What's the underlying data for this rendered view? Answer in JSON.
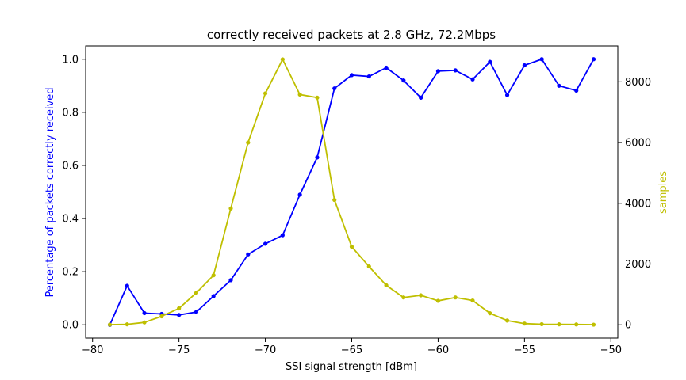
{
  "chart_data": {
    "type": "line",
    "title": "correctly received packets at 2.8 GHz, 72.2Mbps",
    "xlabel": "SSI signal strength [dBm]",
    "ylabel_left": "Percentage of packets correctly received",
    "ylabel_right": "samples",
    "xlim": [
      -80.4,
      -49.6
    ],
    "ylim_left": [
      -0.05,
      1.05
    ],
    "ylim_right": [
      -437,
      9182
    ],
    "xticks": [
      -80,
      -75,
      -70,
      -65,
      -60,
      -55,
      -50
    ],
    "xtick_labels": [
      "−80",
      "−75",
      "−70",
      "−65",
      "−60",
      "−55",
      "−50"
    ],
    "yticks_left": [
      0.0,
      0.2,
      0.4,
      0.6,
      0.8,
      1.0
    ],
    "ytick_labels_left": [
      "0.0",
      "0.2",
      "0.4",
      "0.6",
      "0.8",
      "1.0"
    ],
    "yticks_right": [
      0,
      2000,
      4000,
      6000,
      8000
    ],
    "ytick_labels_right": [
      "0",
      "2000",
      "4000",
      "6000",
      "8000"
    ],
    "x": [
      -79,
      -78,
      -77,
      -76,
      -75,
      -74,
      -73,
      -72,
      -71,
      -70,
      -69,
      -68,
      -67,
      -66,
      -65,
      -64,
      -63,
      -62,
      -61,
      -60,
      -59,
      -58,
      -57,
      -56,
      -55,
      -54,
      -53,
      -52,
      -51
    ],
    "series": [
      {
        "axis": "left",
        "color": "#0000ff",
        "values": [
          0.0,
          0.147,
          0.044,
          0.041,
          0.037,
          0.048,
          0.108,
          0.168,
          0.265,
          0.305,
          0.337,
          0.49,
          0.63,
          0.89,
          0.94,
          0.935,
          0.968,
          0.92,
          0.855,
          0.955,
          0.958,
          0.924,
          0.99,
          0.865,
          0.977,
          1.0,
          0.9,
          0.882,
          1.0
        ]
      },
      {
        "axis": "right",
        "color": "#bfbf00",
        "values": [
          5,
          15,
          80,
          280,
          540,
          1050,
          1630,
          3830,
          6000,
          7620,
          8740,
          7580,
          7480,
          4110,
          2570,
          1920,
          1300,
          900,
          970,
          790,
          900,
          800,
          380,
          140,
          40,
          20,
          15,
          12,
          5
        ]
      }
    ]
  }
}
